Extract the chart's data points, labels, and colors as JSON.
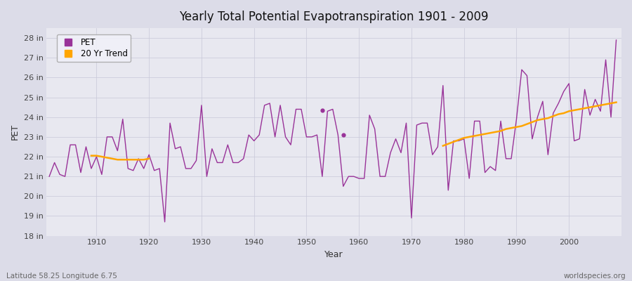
{
  "title": "Yearly Total Potential Evapotranspiration 1901 - 2009",
  "xlabel": "Year",
  "ylabel": "PET",
  "footnote_left": "Latitude 58.25 Longitude 6.75",
  "footnote_right": "worldspecies.org",
  "background_color": "#dcdce8",
  "plot_bg_color": "#e8e8f0",
  "pet_color": "#993399",
  "trend_color": "#ffa500",
  "ylim": [
    18,
    28.5
  ],
  "xlim": [
    1900.5,
    2010
  ],
  "yticks": [
    18,
    19,
    20,
    21,
    22,
    23,
    24,
    25,
    26,
    27,
    28
  ],
  "xtick_vals": [
    1910,
    1920,
    1930,
    1940,
    1950,
    1960,
    1970,
    1980,
    1990,
    2000
  ],
  "years": [
    1901,
    1902,
    1903,
    1904,
    1905,
    1906,
    1907,
    1908,
    1909,
    1910,
    1911,
    1912,
    1913,
    1914,
    1915,
    1916,
    1917,
    1918,
    1919,
    1920,
    1921,
    1922,
    1923,
    1924,
    1925,
    1926,
    1927,
    1928,
    1929,
    1930,
    1931,
    1932,
    1933,
    1934,
    1935,
    1936,
    1937,
    1938,
    1939,
    1940,
    1941,
    1942,
    1943,
    1944,
    1945,
    1946,
    1947,
    1948,
    1949,
    1950,
    1951,
    1952,
    1953,
    1954,
    1955,
    1956,
    1957,
    1958,
    1959,
    1960,
    1961,
    1962,
    1963,
    1964,
    1965,
    1966,
    1967,
    1968,
    1969,
    1970,
    1971,
    1972,
    1973,
    1974,
    1975,
    1976,
    1977,
    1978,
    1979,
    1980,
    1981,
    1982,
    1983,
    1984,
    1985,
    1986,
    1987,
    1988,
    1989,
    1990,
    1991,
    1992,
    1993,
    1994,
    1995,
    1996,
    1997,
    1998,
    1999,
    2000,
    2001,
    2002,
    2003,
    2004,
    2005,
    2006,
    2007,
    2008,
    2009
  ],
  "pet_values": [
    21.0,
    21.7,
    21.1,
    21.0,
    22.6,
    22.6,
    21.2,
    22.5,
    21.4,
    22.0,
    21.1,
    23.0,
    23.0,
    22.3,
    23.9,
    21.4,
    21.3,
    21.9,
    21.4,
    22.1,
    21.3,
    21.4,
    18.7,
    23.7,
    22.4,
    22.5,
    21.4,
    21.4,
    21.8,
    24.6,
    21.0,
    22.4,
    21.7,
    21.7,
    22.6,
    21.7,
    21.7,
    21.9,
    23.1,
    22.8,
    23.1,
    24.6,
    24.7,
    23.0,
    24.6,
    23.0,
    22.6,
    24.4,
    24.4,
    23.0,
    23.0,
    23.1,
    21.0,
    24.3,
    24.4,
    23.1,
    20.5,
    21.0,
    21.0,
    20.9,
    20.9,
    24.1,
    23.4,
    21.0,
    21.0,
    22.2,
    22.9,
    22.2,
    23.7,
    18.9,
    23.6,
    23.7,
    23.7,
    22.1,
    22.5,
    25.6,
    20.3,
    22.8,
    22.8,
    22.9,
    20.9,
    23.8,
    23.8,
    21.2,
    21.5,
    21.3,
    23.8,
    21.9,
    21.9,
    23.9,
    26.4,
    26.1,
    22.9,
    24.0,
    24.8,
    22.1,
    24.2,
    24.7,
    25.3,
    25.7,
    22.8,
    22.9,
    25.4,
    24.1,
    24.9,
    24.3,
    26.9,
    24.0,
    27.9
  ],
  "trend_years_early": [
    1909,
    1910,
    1911,
    1912,
    1913,
    1914,
    1915,
    1916,
    1917,
    1918,
    1919,
    1920
  ],
  "trend_vals_early": [
    22.05,
    22.05,
    22.0,
    21.95,
    21.9,
    21.85,
    21.85,
    21.85,
    21.85,
    21.85,
    21.85,
    21.9
  ],
  "trend_years_main": [
    1976,
    1977,
    1978,
    1979,
    1980,
    1981,
    1982,
    1983,
    1984,
    1985,
    1986,
    1987,
    1988,
    1989,
    1990,
    1991,
    1992,
    1993,
    1994,
    1995,
    1996,
    1997,
    1998,
    1999,
    2000,
    2001,
    2002,
    2003,
    2004,
    2005,
    2006,
    2007,
    2008,
    2009
  ],
  "trend_vals_main": [
    22.55,
    22.65,
    22.75,
    22.85,
    22.95,
    23.0,
    23.05,
    23.1,
    23.15,
    23.2,
    23.25,
    23.3,
    23.4,
    23.45,
    23.5,
    23.55,
    23.65,
    23.75,
    23.85,
    23.9,
    23.95,
    24.05,
    24.15,
    24.2,
    24.3,
    24.35,
    24.4,
    24.45,
    24.5,
    24.55,
    24.6,
    24.65,
    24.7,
    24.75
  ],
  "dot_years": [
    1953,
    1957
  ],
  "dot_values": [
    24.35,
    23.1
  ]
}
